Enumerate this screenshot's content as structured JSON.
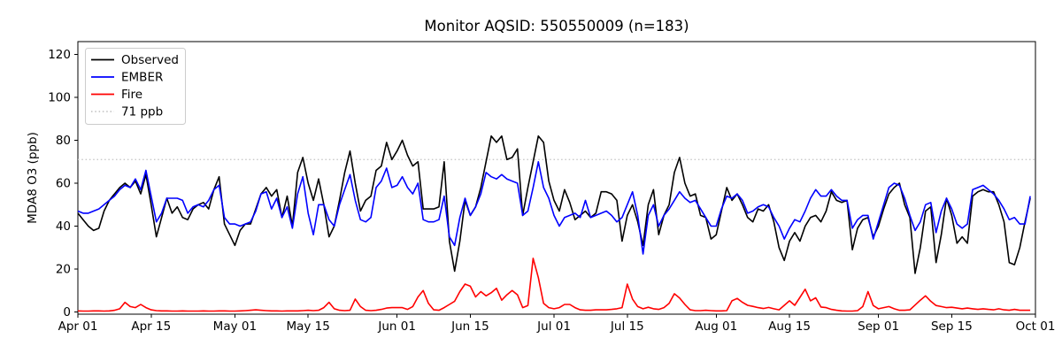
{
  "chart_data": {
    "type": "line",
    "title": "Monitor AQSID: 550550009 (n=183)",
    "ylabel": "MDA8 O3 (ppb)",
    "xlabel": "",
    "n_points": 183,
    "x_start": "Apr 01",
    "x_end": "Oct 01",
    "ylim_ticks": [
      0,
      120
    ],
    "yticks": [
      0,
      20,
      40,
      60,
      80,
      100,
      120
    ],
    "xticks": [
      {
        "label": "Apr 01",
        "day": 0
      },
      {
        "label": "Apr 15",
        "day": 14
      },
      {
        "label": "May 01",
        "day": 30
      },
      {
        "label": "May 15",
        "day": 44
      },
      {
        "label": "Jun 01",
        "day": 61
      },
      {
        "label": "Jun 15",
        "day": 75
      },
      {
        "label": "Jul 01",
        "day": 91
      },
      {
        "label": "Jul 15",
        "day": 105
      },
      {
        "label": "Aug 01",
        "day": 122
      },
      {
        "label": "Aug 15",
        "day": 136
      },
      {
        "label": "Sep 01",
        "day": 153
      },
      {
        "label": "Sep 15",
        "day": 167
      },
      {
        "label": "Oct 01",
        "day": 183
      }
    ],
    "grid": false,
    "legend_position": "upper left",
    "threshold": {
      "label": "71 ppb",
      "value": 71,
      "color": "#c8c8c8",
      "style": "dotted"
    },
    "series": [
      {
        "name": "Observed",
        "color": "#000000",
        "values": [
          46,
          43,
          40,
          38,
          39,
          47,
          52,
          55,
          58,
          60,
          58,
          61,
          55,
          64,
          50,
          35,
          44,
          53,
          46,
          49,
          44,
          43,
          48,
          50,
          51,
          48,
          57,
          63,
          41,
          36,
          31,
          38,
          41,
          41,
          48,
          55,
          58,
          54,
          57,
          44,
          54,
          40,
          65,
          72,
          60,
          52,
          62,
          50,
          35,
          40,
          52,
          65,
          75,
          60,
          47,
          52,
          54,
          66,
          68,
          79,
          71,
          75,
          80,
          73,
          68,
          70,
          48,
          48,
          48,
          49,
          70,
          33,
          19,
          33,
          52,
          45,
          49,
          58,
          70,
          82,
          79,
          82,
          71,
          72,
          76,
          45,
          58,
          70,
          82,
          79,
          61,
          52,
          47,
          57,
          51,
          43,
          45,
          47,
          44,
          46,
          56,
          56,
          55,
          52,
          33,
          45,
          50,
          42,
          31,
          50,
          57,
          36,
          45,
          50,
          65,
          72,
          60,
          54,
          55,
          45,
          44,
          34,
          36,
          47,
          58,
          52,
          55,
          50,
          44,
          42,
          48,
          47,
          50,
          42,
          30,
          24,
          33,
          37,
          33,
          40,
          44,
          45,
          42,
          47,
          56,
          52,
          51,
          52,
          29,
          39,
          43,
          44,
          35,
          40,
          48,
          55,
          58,
          60,
          50,
          44,
          18,
          30,
          47,
          49,
          23,
          36,
          53,
          45,
          32,
          35,
          32,
          54,
          56,
          57,
          56,
          56,
          50,
          42,
          23,
          22,
          30,
          42,
          53
        ]
      },
      {
        "name": "EMBER",
        "color": "#0000ff",
        "values": [
          47,
          46,
          46,
          47,
          48,
          50,
          52,
          54,
          57,
          59,
          58,
          62,
          57,
          66,
          54,
          42,
          46,
          53,
          53,
          53,
          52,
          46,
          49,
          50,
          49,
          52,
          57,
          59,
          44,
          41,
          41,
          40,
          41,
          42,
          47,
          55,
          56,
          48,
          53,
          44,
          49,
          39,
          55,
          63,
          46,
          36,
          50,
          50,
          43,
          40,
          50,
          57,
          64,
          52,
          43,
          42,
          44,
          58,
          61,
          67,
          58,
          59,
          63,
          58,
          55,
          60,
          43,
          42,
          42,
          43,
          54,
          35,
          31,
          44,
          53,
          45,
          49,
          55,
          65,
          63,
          62,
          64,
          62,
          61,
          60,
          45,
          47,
          58,
          70,
          58,
          53,
          45,
          40,
          44,
          45,
          46,
          44,
          52,
          44,
          45,
          46,
          47,
          45,
          42,
          44,
          50,
          56,
          45,
          27,
          45,
          50,
          40,
          45,
          48,
          52,
          56,
          53,
          51,
          52,
          48,
          44,
          40,
          40,
          48,
          54,
          53,
          55,
          52,
          46,
          47,
          49,
          50,
          49,
          44,
          40,
          34,
          39,
          43,
          42,
          47,
          53,
          57,
          54,
          54,
          57,
          54,
          52,
          52,
          39,
          43,
          45,
          45,
          34,
          42,
          50,
          58,
          60,
          59,
          53,
          45,
          38,
          42,
          50,
          51,
          37,
          47,
          53,
          48,
          41,
          39,
          41,
          57,
          58,
          59,
          57,
          55,
          52,
          48,
          43,
          44,
          41,
          41,
          54
        ]
      },
      {
        "name": "Fire",
        "color": "#ff0000",
        "values": [
          0.5,
          0.4,
          0.4,
          0.5,
          0.5,
          0.4,
          0.5,
          0.8,
          1.5,
          4.5,
          2.5,
          2.0,
          3.5,
          2.0,
          1.0,
          0.6,
          0.5,
          0.5,
          0.4,
          0.4,
          0.5,
          0.4,
          0.4,
          0.4,
          0.5,
          0.4,
          0.4,
          0.5,
          0.5,
          0.4,
          0.4,
          0.5,
          0.6,
          0.8,
          1.0,
          0.8,
          0.6,
          0.5,
          0.5,
          0.4,
          0.5,
          0.5,
          0.5,
          0.6,
          0.8,
          0.6,
          0.8,
          2.0,
          4.5,
          1.5,
          0.8,
          0.6,
          0.8,
          6.0,
          2.5,
          0.8,
          0.6,
          0.8,
          1.2,
          1.8,
          2.0,
          2.0,
          2.0,
          1.2,
          2.5,
          7.0,
          10.0,
          4.0,
          1.0,
          0.8,
          2.0,
          3.5,
          5.0,
          9.5,
          13.0,
          12.0,
          7.0,
          9.5,
          7.5,
          9.0,
          11.0,
          5.5,
          8.0,
          10.0,
          8.0,
          2.0,
          3.0,
          25.0,
          16.0,
          4.0,
          2.0,
          1.5,
          2.0,
          3.5,
          3.5,
          2.0,
          1.0,
          0.8,
          0.8,
          1.0,
          1.0,
          1.0,
          1.2,
          1.5,
          2.0,
          13.0,
          6.0,
          2.5,
          1.5,
          2.2,
          1.5,
          1.2,
          2.0,
          4.0,
          8.5,
          6.5,
          3.5,
          1.0,
          0.6,
          0.6,
          0.8,
          0.6,
          0.5,
          0.5,
          0.6,
          5.2,
          6.3,
          4.5,
          3.1,
          2.6,
          2.0,
          1.6,
          2.1,
          1.5,
          1.0,
          3.1,
          5.2,
          3.1,
          6.8,
          10.6,
          5.2,
          6.6,
          2.3,
          2.0,
          1.2,
          0.8,
          0.5,
          0.4,
          0.4,
          0.6,
          2.5,
          9.5,
          3.0,
          1.5,
          2.0,
          2.5,
          1.5,
          0.8,
          0.8,
          1.0,
          3.2,
          5.5,
          7.5,
          5.0,
          3.0,
          2.5,
          2.0,
          2.2,
          1.8,
          1.5,
          1.8,
          1.5,
          1.2,
          1.5,
          1.2,
          1.0,
          1.5,
          1.0,
          0.8,
          1.2,
          0.8,
          0.8,
          0.8
        ]
      }
    ],
    "legend": [
      {
        "label": "Observed",
        "color": "#000000",
        "dash": ""
      },
      {
        "label": "EMBER",
        "color": "#0000ff",
        "dash": ""
      },
      {
        "label": "Fire",
        "color": "#ff0000",
        "dash": ""
      },
      {
        "label": "71 ppb",
        "color": "#c8c8c8",
        "dash": "1.5 2.8"
      }
    ]
  }
}
